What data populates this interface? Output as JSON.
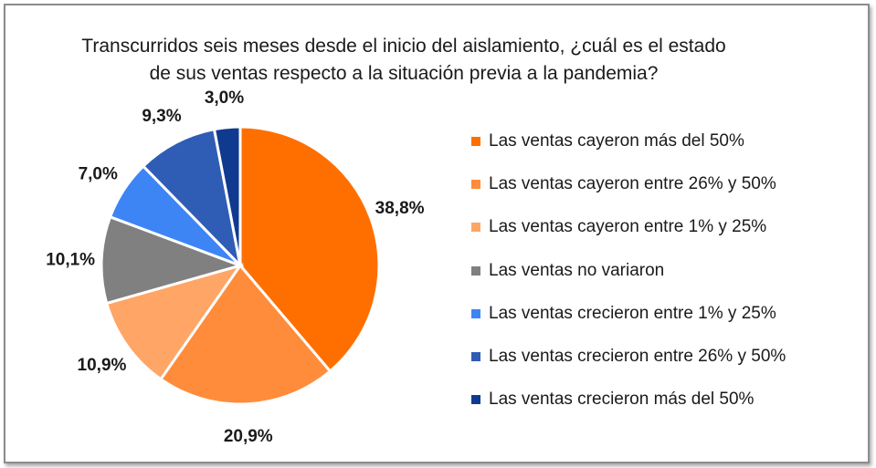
{
  "chart_data": {
    "type": "pie",
    "title": [
      "Transcurridos seis meses desde el inicio del aislamiento, ¿cuál es el estado",
      "de sus ventas respecto a la situación previa a la pandemia?"
    ],
    "categories": [
      "Las ventas cayeron más del 50%",
      "Las ventas cayeron entre 26% y 50%",
      "Las ventas cayeron entre 1% y 25%",
      "Las ventas no variaron",
      "Las ventas crecieron entre 1% y 25%",
      "Las ventas crecieron entre 26% y 50%",
      "Las ventas crecieron más del 50%"
    ],
    "values": [
      38.8,
      20.9,
      10.9,
      10.1,
      7.0,
      9.3,
      3.0
    ],
    "labels": [
      "38,8%",
      "20,9%",
      "10,9%",
      "10,1%",
      "7,0%",
      "9,3%",
      "3,0%"
    ],
    "colors": [
      "#ff6f00",
      "#ff8c3a",
      "#ffa566",
      "#808080",
      "#3d85f5",
      "#2f5db5",
      "#0f3a8f"
    ],
    "legend_position": "right",
    "start_angle": "top, clockwise"
  }
}
